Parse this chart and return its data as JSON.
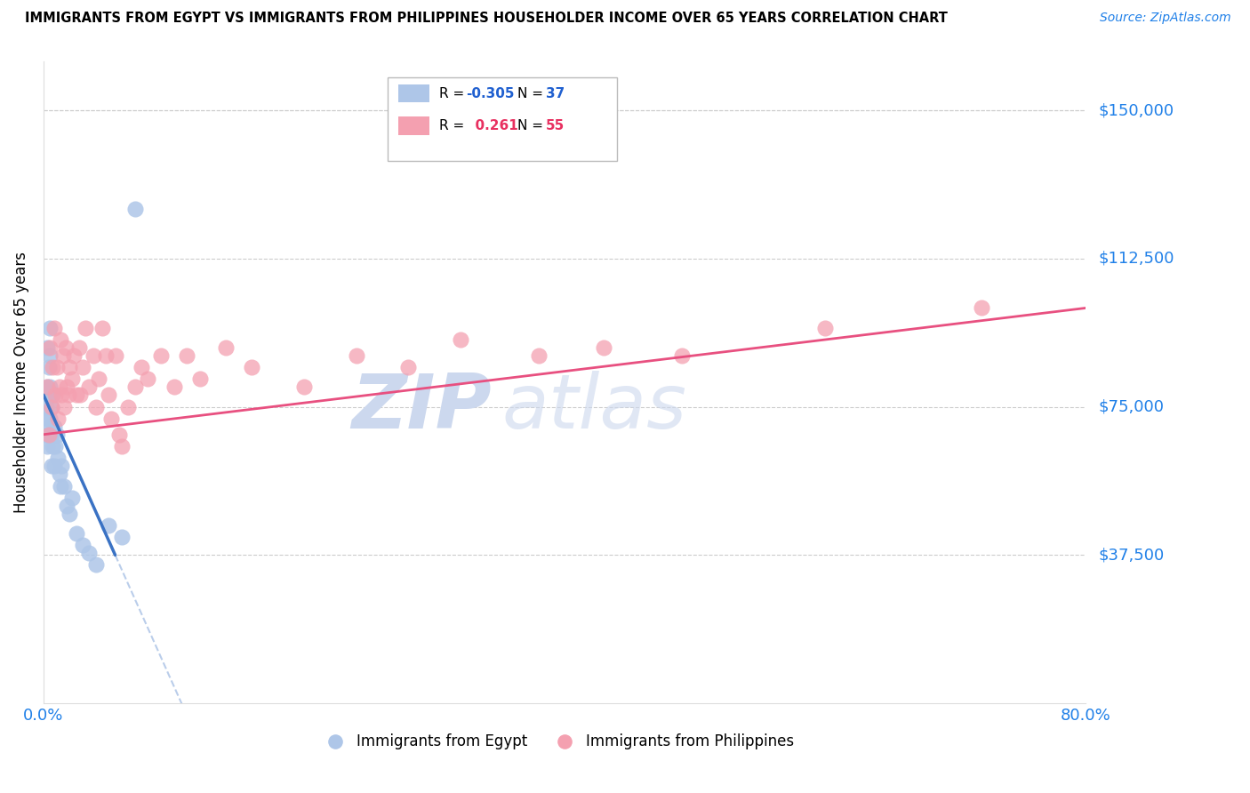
{
  "title": "IMMIGRANTS FROM EGYPT VS IMMIGRANTS FROM PHILIPPINES HOUSEHOLDER INCOME OVER 65 YEARS CORRELATION CHART",
  "source": "Source: ZipAtlas.com",
  "ylabel": "Householder Income Over 65 years",
  "ytick_labels": [
    "$37,500",
    "$75,000",
    "$112,500",
    "$150,000"
  ],
  "ytick_values": [
    37500,
    75000,
    112500,
    150000
  ],
  "ymin": 0,
  "ymax": 162500,
  "xmin": 0.0,
  "xmax": 0.8,
  "xtick_positions": [
    0.0,
    0.1,
    0.2,
    0.3,
    0.4,
    0.5,
    0.6,
    0.7,
    0.8
  ],
  "xtick_labels": [
    "0.0%",
    "",
    "",
    "",
    "",
    "",
    "",
    "",
    "80.0%"
  ],
  "legend_egypt_r": "-0.305",
  "legend_egypt_n": "37",
  "legend_phil_r": "0.261",
  "legend_phil_n": "55",
  "egypt_color": "#aec6e8",
  "phil_color": "#f4a0b0",
  "egypt_line_color": "#3a72c4",
  "phil_line_color": "#e85080",
  "watermark_color": "#ccd8ee",
  "egypt_x": [
    0.002,
    0.002,
    0.003,
    0.003,
    0.003,
    0.003,
    0.004,
    0.004,
    0.004,
    0.005,
    0.005,
    0.005,
    0.005,
    0.006,
    0.006,
    0.006,
    0.007,
    0.007,
    0.008,
    0.008,
    0.009,
    0.01,
    0.011,
    0.012,
    0.013,
    0.014,
    0.016,
    0.018,
    0.02,
    0.022,
    0.025,
    0.03,
    0.035,
    0.04,
    0.05,
    0.06,
    0.07
  ],
  "egypt_y": [
    75000,
    68000,
    90000,
    80000,
    72000,
    65000,
    85000,
    78000,
    70000,
    95000,
    88000,
    80000,
    72000,
    75000,
    68000,
    60000,
    78000,
    65000,
    70000,
    60000,
    65000,
    68000,
    62000,
    58000,
    55000,
    60000,
    55000,
    50000,
    48000,
    52000,
    43000,
    40000,
    38000,
    35000,
    45000,
    42000,
    125000
  ],
  "phil_x": [
    0.003,
    0.004,
    0.005,
    0.006,
    0.007,
    0.008,
    0.009,
    0.01,
    0.011,
    0.012,
    0.013,
    0.014,
    0.015,
    0.016,
    0.017,
    0.018,
    0.019,
    0.02,
    0.022,
    0.023,
    0.025,
    0.027,
    0.028,
    0.03,
    0.032,
    0.035,
    0.038,
    0.04,
    0.042,
    0.045,
    0.048,
    0.05,
    0.052,
    0.055,
    0.058,
    0.06,
    0.065,
    0.07,
    0.075,
    0.08,
    0.09,
    0.1,
    0.11,
    0.12,
    0.14,
    0.16,
    0.2,
    0.24,
    0.28,
    0.32,
    0.38,
    0.43,
    0.49,
    0.6,
    0.72
  ],
  "phil_y": [
    80000,
    68000,
    90000,
    75000,
    85000,
    95000,
    78000,
    85000,
    72000,
    80000,
    92000,
    78000,
    88000,
    75000,
    90000,
    80000,
    78000,
    85000,
    82000,
    88000,
    78000,
    90000,
    78000,
    85000,
    95000,
    80000,
    88000,
    75000,
    82000,
    95000,
    88000,
    78000,
    72000,
    88000,
    68000,
    65000,
    75000,
    80000,
    85000,
    82000,
    88000,
    80000,
    88000,
    82000,
    90000,
    85000,
    80000,
    88000,
    85000,
    92000,
    88000,
    90000,
    88000,
    95000,
    100000
  ],
  "egypt_line_solid_end": 0.055,
  "phil_line_start": 0.0,
  "phil_line_end": 0.8
}
